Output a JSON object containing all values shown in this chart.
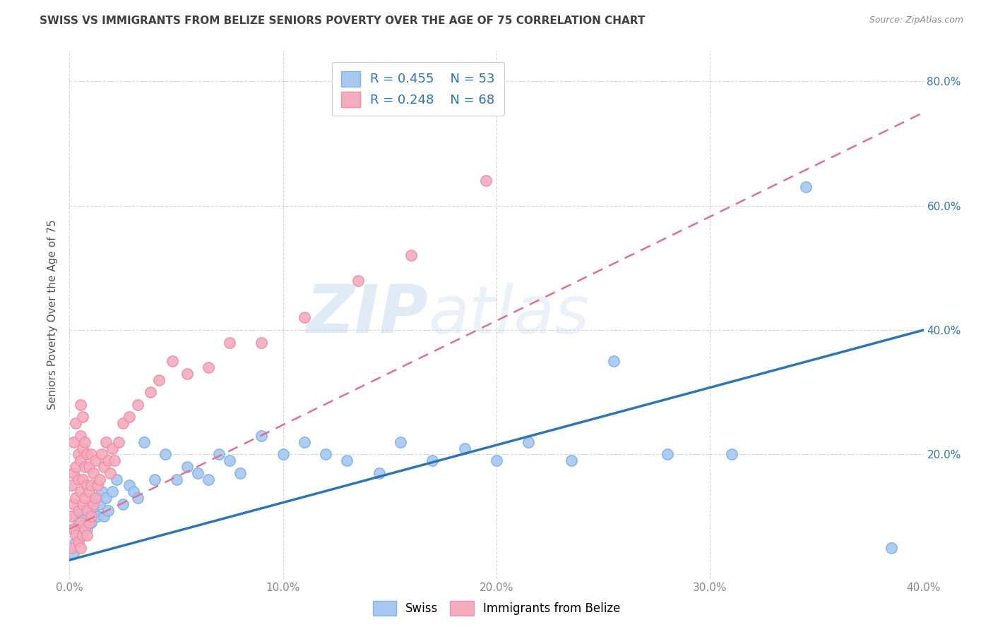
{
  "title": "SWISS VS IMMIGRANTS FROM BELIZE SENIORS POVERTY OVER THE AGE OF 75 CORRELATION CHART",
  "source": "Source: ZipAtlas.com",
  "ylabel": "Seniors Poverty Over the Age of 75",
  "xlim": [
    0.0,
    0.4
  ],
  "ylim": [
    0.0,
    0.85
  ],
  "ytick_vals": [
    0.0,
    0.2,
    0.4,
    0.6,
    0.8
  ],
  "xtick_vals": [
    0.0,
    0.1,
    0.2,
    0.3,
    0.4
  ],
  "swiss_color": "#A8C8F0",
  "swiss_edge_color": "#7EB4EA",
  "belize_color": "#F4ACBE",
  "belize_edge_color": "#F090AA",
  "swiss_line_color": "#2E75B6",
  "belize_line_color": "#E07090",
  "swiss_R": 0.455,
  "swiss_N": 53,
  "belize_R": 0.248,
  "belize_N": 68,
  "legend_text_color": "#2E75B6",
  "watermark_zip": "ZIP",
  "watermark_atlas": "atlas",
  "background_color": "#FFFFFF",
  "grid_color": "#CCCCCC",
  "title_color": "#404040",
  "source_color": "#888888",
  "axis_label_color": "#555555",
  "tick_color": "#888888",
  "right_tick_color": "#2E75B6",
  "swiss_scatter_x": [
    0.001,
    0.002,
    0.002,
    0.003,
    0.003,
    0.004,
    0.005,
    0.006,
    0.007,
    0.008,
    0.009,
    0.01,
    0.011,
    0.012,
    0.013,
    0.014,
    0.015,
    0.016,
    0.017,
    0.018,
    0.02,
    0.022,
    0.025,
    0.028,
    0.03,
    0.032,
    0.035,
    0.04,
    0.045,
    0.05,
    0.055,
    0.06,
    0.065,
    0.07,
    0.075,
    0.08,
    0.09,
    0.1,
    0.11,
    0.12,
    0.13,
    0.145,
    0.155,
    0.17,
    0.185,
    0.2,
    0.215,
    0.235,
    0.255,
    0.28,
    0.31,
    0.345,
    0.385
  ],
  "swiss_scatter_y": [
    0.05,
    0.04,
    0.08,
    0.06,
    0.1,
    0.09,
    0.07,
    0.11,
    0.1,
    0.08,
    0.12,
    0.09,
    0.11,
    0.13,
    0.1,
    0.12,
    0.14,
    0.1,
    0.13,
    0.11,
    0.14,
    0.16,
    0.12,
    0.15,
    0.14,
    0.13,
    0.22,
    0.16,
    0.2,
    0.16,
    0.18,
    0.17,
    0.16,
    0.2,
    0.19,
    0.17,
    0.23,
    0.2,
    0.22,
    0.2,
    0.19,
    0.17,
    0.22,
    0.19,
    0.21,
    0.19,
    0.22,
    0.19,
    0.35,
    0.2,
    0.2,
    0.63,
    0.05
  ],
  "belize_scatter_x": [
    0.001,
    0.001,
    0.001,
    0.002,
    0.002,
    0.002,
    0.002,
    0.003,
    0.003,
    0.003,
    0.003,
    0.004,
    0.004,
    0.004,
    0.004,
    0.005,
    0.005,
    0.005,
    0.005,
    0.005,
    0.005,
    0.006,
    0.006,
    0.006,
    0.006,
    0.006,
    0.007,
    0.007,
    0.007,
    0.007,
    0.008,
    0.008,
    0.008,
    0.008,
    0.009,
    0.009,
    0.009,
    0.01,
    0.01,
    0.01,
    0.011,
    0.011,
    0.012,
    0.012,
    0.013,
    0.014,
    0.015,
    0.016,
    0.017,
    0.018,
    0.019,
    0.02,
    0.021,
    0.023,
    0.025,
    0.028,
    0.032,
    0.038,
    0.042,
    0.048,
    0.055,
    0.065,
    0.075,
    0.09,
    0.11,
    0.135,
    0.16,
    0.195
  ],
  "belize_scatter_y": [
    0.05,
    0.1,
    0.15,
    0.08,
    0.12,
    0.17,
    0.22,
    0.07,
    0.13,
    0.18,
    0.25,
    0.06,
    0.11,
    0.16,
    0.2,
    0.05,
    0.09,
    0.14,
    0.19,
    0.23,
    0.28,
    0.07,
    0.12,
    0.16,
    0.21,
    0.26,
    0.08,
    0.13,
    0.18,
    0.22,
    0.07,
    0.11,
    0.15,
    0.2,
    0.09,
    0.14,
    0.18,
    0.1,
    0.15,
    0.2,
    0.12,
    0.17,
    0.13,
    0.19,
    0.15,
    0.16,
    0.2,
    0.18,
    0.22,
    0.19,
    0.17,
    0.21,
    0.19,
    0.22,
    0.25,
    0.26,
    0.28,
    0.3,
    0.32,
    0.35,
    0.33,
    0.34,
    0.38,
    0.38,
    0.42,
    0.48,
    0.52,
    0.64
  ],
  "swiss_line_x0": 0.0,
  "swiss_line_y0": 0.03,
  "swiss_line_x1": 0.4,
  "swiss_line_y1": 0.4,
  "belize_line_x0": 0.0,
  "belize_line_y0": 0.08,
  "belize_line_x1": 0.4,
  "belize_line_y1": 0.75
}
